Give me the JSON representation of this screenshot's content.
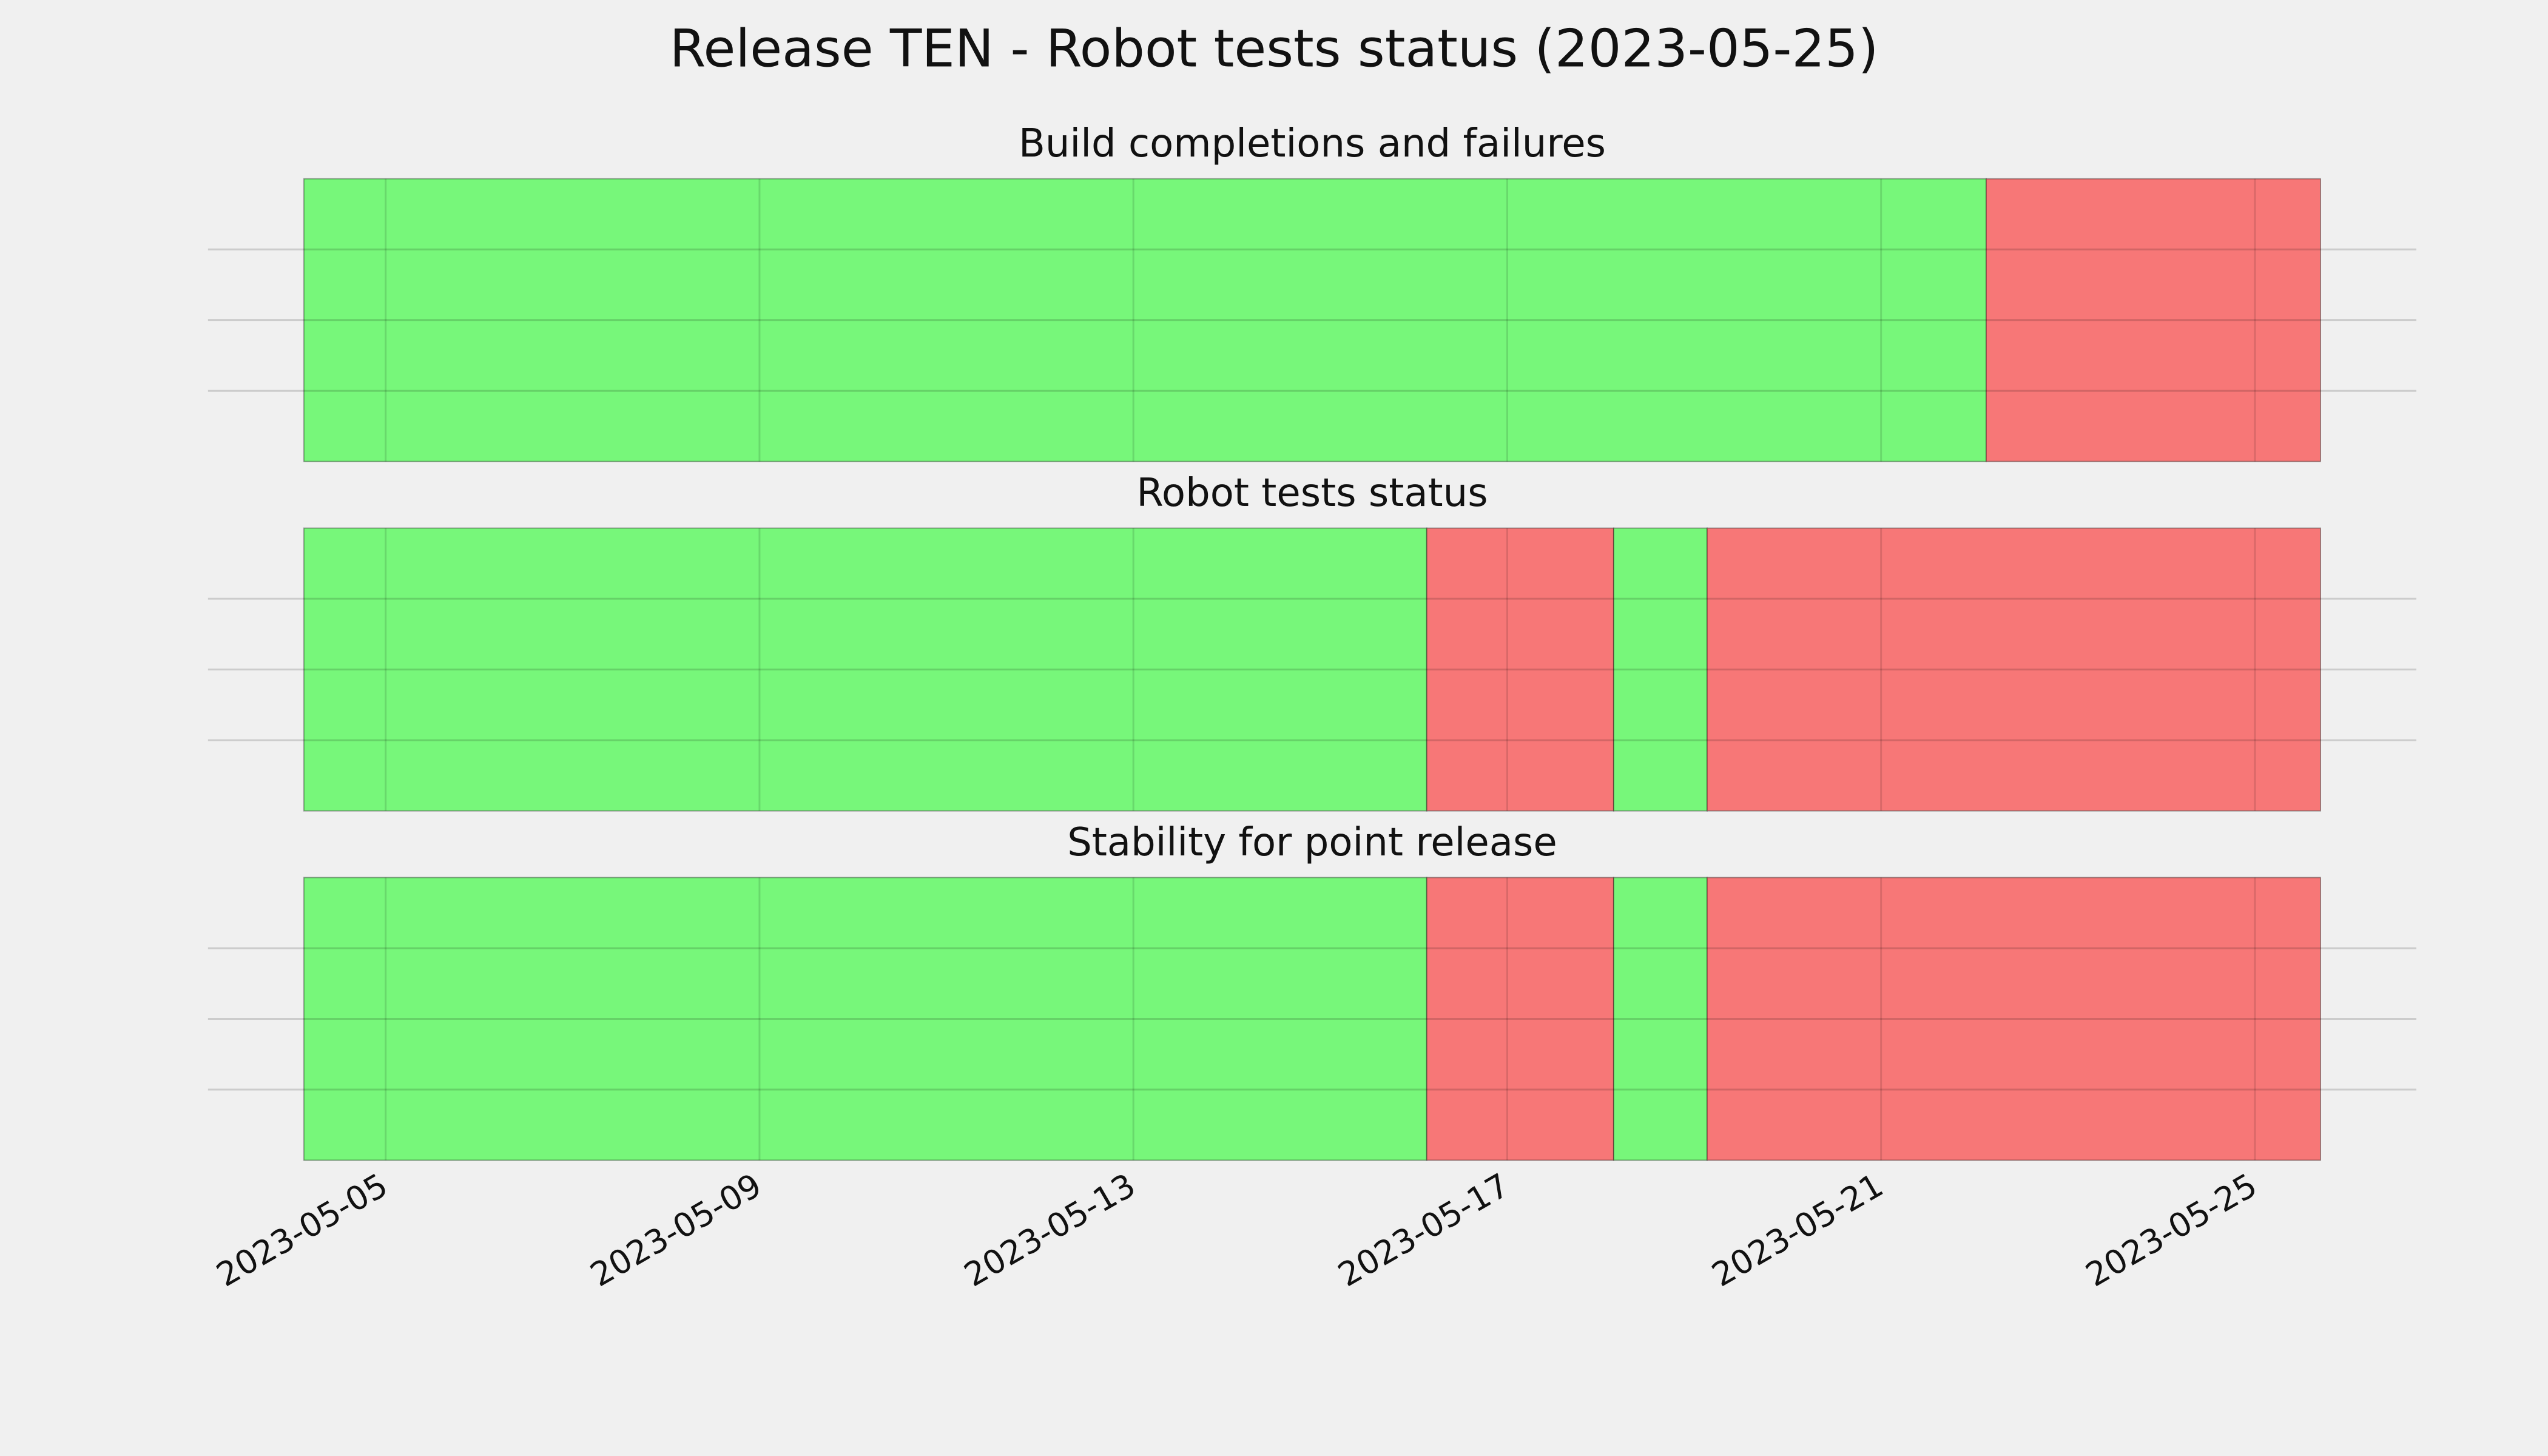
{
  "title": "Release TEN - Robot tests status (2023-05-25)",
  "chart_data": [
    {
      "type": "timeline",
      "title": "Build completions and failures",
      "x": [
        "2023-05-04T03:00",
        "2023-05-22T03:00",
        "2023-05-25T16:50"
      ],
      "colors": [
        "#77f77a",
        "#f77777"
      ],
      "xlim": [
        "2023-05-04T03:00",
        "2023-05-25T16:50"
      ],
      "xticks": [
        "2023-05-05",
        "2023-05-09",
        "2023-05-13",
        "2023-05-17",
        "2023-05-21",
        "2023-05-25"
      ],
      "grid": true
    },
    {
      "type": "timeline",
      "title": "Robot tests status",
      "x": [
        "2023-05-04T03:00",
        "2023-05-16T03:20",
        "2023-05-18T03:20",
        "2023-05-19T03:20",
        "2023-05-25T16:50"
      ],
      "colors": [
        "#77f77a",
        "#f77777",
        "#77f77a",
        "#f77777"
      ],
      "xlim": [
        "2023-05-04T03:00",
        "2023-05-25T16:50"
      ],
      "xticks": [
        "2023-05-05",
        "2023-05-09",
        "2023-05-13",
        "2023-05-17",
        "2023-05-21",
        "2023-05-25"
      ],
      "grid": true
    },
    {
      "type": "timeline",
      "title": "Stability for point release",
      "x": [
        "2023-05-04T03:00",
        "2023-05-16T03:20",
        "2023-05-18T03:20",
        "2023-05-19T03:20",
        "2023-05-25T16:50"
      ],
      "colors": [
        "#77f77a",
        "#f77777",
        "#77f77a",
        "#f77777"
      ],
      "xlim": [
        "2023-05-04T03:00",
        "2023-05-25T16:50"
      ],
      "xticks": [
        "2023-05-05",
        "2023-05-09",
        "2023-05-13",
        "2023-05-17",
        "2023-05-21",
        "2023-05-25"
      ],
      "grid": true
    }
  ]
}
